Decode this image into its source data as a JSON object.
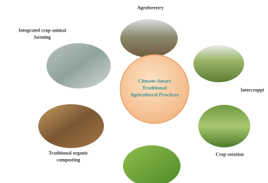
{
  "center": {
    "lines": [
      "Climate-Smart",
      "Traditional",
      "Agricultural Practices"
    ]
  },
  "nodes": [
    {
      "lines": [
        "Agroforestry"
      ]
    },
    {
      "lines": [
        "Integrated crop-animal",
        "farming"
      ]
    },
    {
      "lines": [
        "Intercroppi"
      ]
    },
    {
      "lines": [
        "Crop rotation"
      ]
    },
    {
      "lines": [
        "Traditional organic",
        "composting"
      ]
    }
  ]
}
